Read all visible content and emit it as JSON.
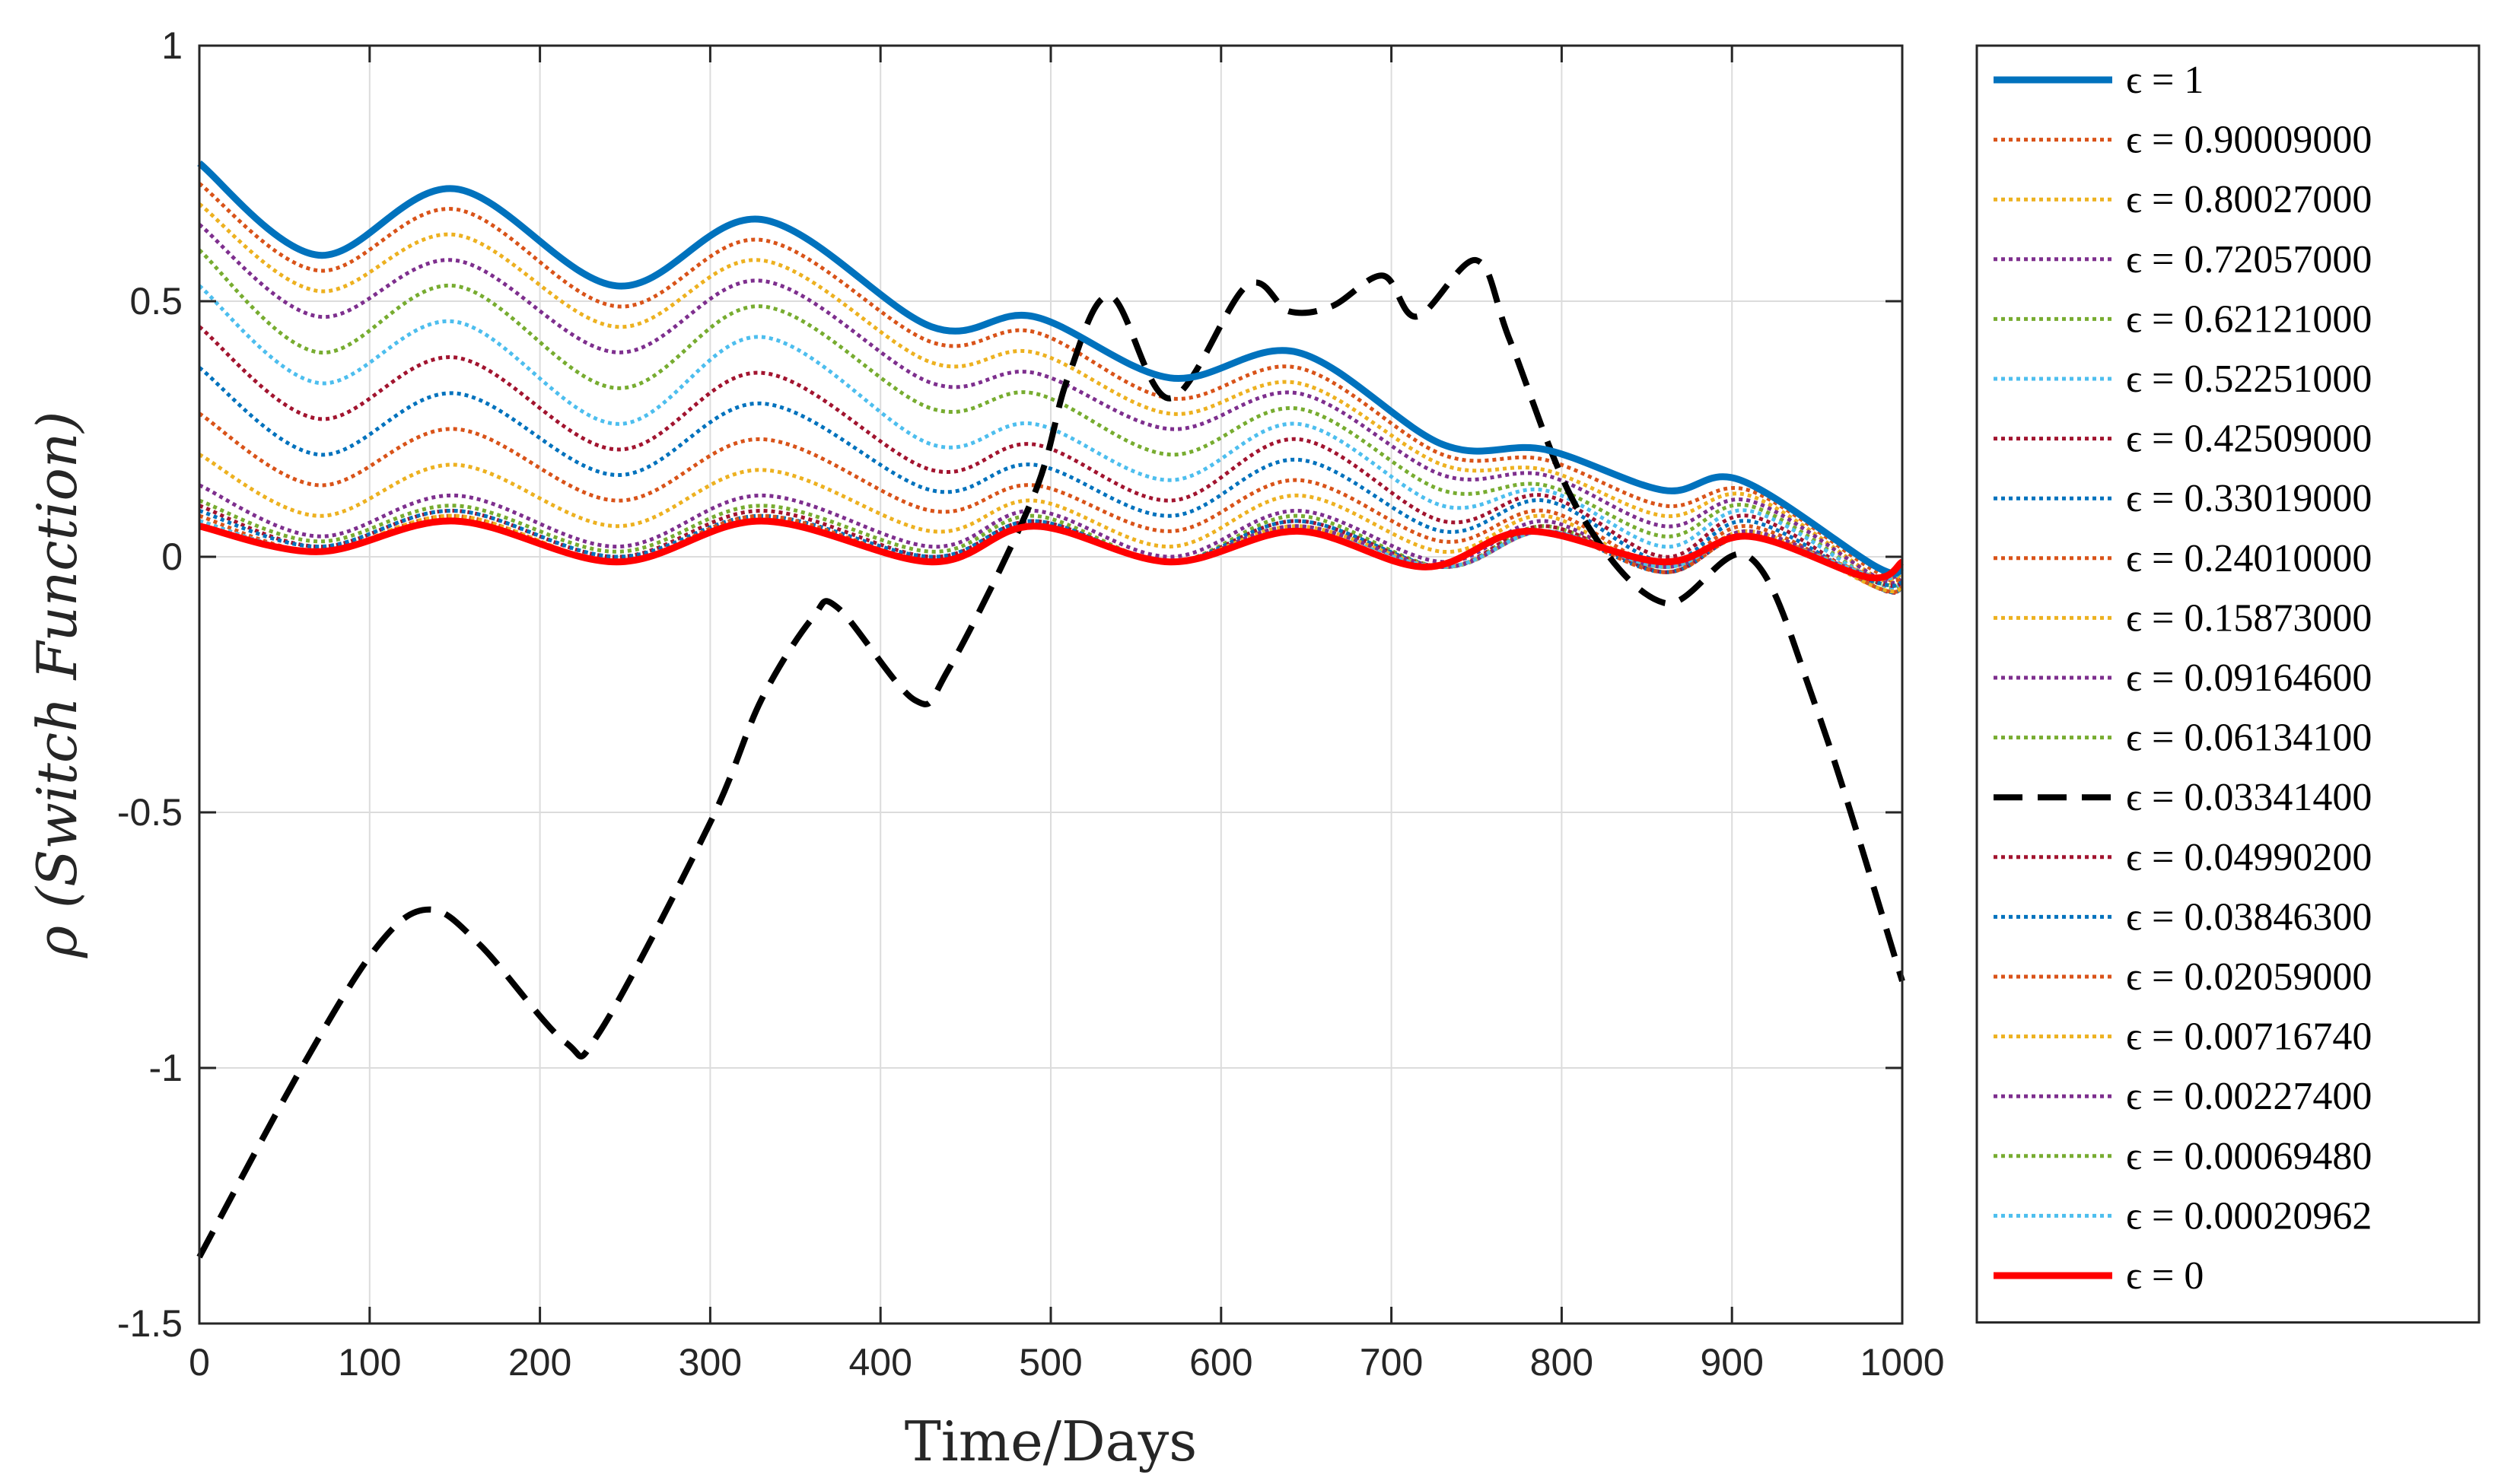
{
  "chart_data": {
    "type": "line",
    "xlabel": "Time/Days",
    "ylabel": "ρ (Switch Function)",
    "xlim": [
      0,
      1000
    ],
    "ylim": [
      -1.5,
      1
    ],
    "xticks": [
      "0",
      "100",
      "200",
      "300",
      "400",
      "500",
      "600",
      "700",
      "800",
      "900",
      "1000"
    ],
    "yticks": [
      "1",
      "0.5",
      "0",
      "-0.5",
      "-1",
      "-1.5"
    ],
    "grid": true,
    "legend_position": "outside-right",
    "series": [
      {
        "name": "ϵ = 1",
        "color": "#0072BD",
        "style": "solid",
        "x": [
          0,
          70,
          150,
          245,
          330,
          430,
          490,
          570,
          645,
          730,
          790,
          860,
          905,
          985,
          1000
        ],
        "y": [
          0.77,
          0.59,
          0.72,
          0.53,
          0.66,
          0.45,
          0.47,
          0.35,
          0.4,
          0.22,
          0.21,
          0.13,
          0.15,
          -0.02,
          -0.02
        ]
      },
      {
        "name": "ϵ = 0.90009000",
        "color": "#D95319",
        "style": "dotted",
        "x": [
          0,
          70,
          150,
          245,
          330,
          430,
          490,
          570,
          645,
          730,
          790,
          860,
          910,
          985,
          1000
        ],
        "y": [
          0.73,
          0.56,
          0.68,
          0.49,
          0.62,
          0.42,
          0.44,
          0.31,
          0.37,
          0.2,
          0.19,
          0.1,
          0.13,
          -0.03,
          -0.03
        ]
      },
      {
        "name": "ϵ = 0.80027000",
        "color": "#EDB120",
        "style": "dotted",
        "x": [
          0,
          70,
          150,
          245,
          330,
          430,
          490,
          570,
          645,
          730,
          790,
          860,
          910,
          985,
          1000
        ],
        "y": [
          0.69,
          0.52,
          0.63,
          0.45,
          0.58,
          0.38,
          0.4,
          0.28,
          0.34,
          0.18,
          0.17,
          0.08,
          0.12,
          -0.04,
          -0.04
        ]
      },
      {
        "name": "ϵ = 0.72057000",
        "color": "#7E2F8E",
        "style": "dotted",
        "x": [
          0,
          70,
          150,
          245,
          330,
          430,
          490,
          570,
          645,
          730,
          790,
          860,
          910,
          985,
          1000
        ],
        "y": [
          0.65,
          0.47,
          0.58,
          0.4,
          0.54,
          0.34,
          0.36,
          0.25,
          0.32,
          0.16,
          0.16,
          0.06,
          0.11,
          -0.04,
          -0.04
        ]
      },
      {
        "name": "ϵ = 0.62121000",
        "color": "#77AC30",
        "style": "dotted",
        "x": [
          0,
          70,
          150,
          245,
          330,
          430,
          490,
          570,
          645,
          730,
          790,
          860,
          910,
          985,
          1000
        ],
        "y": [
          0.6,
          0.4,
          0.53,
          0.33,
          0.49,
          0.29,
          0.32,
          0.2,
          0.29,
          0.13,
          0.14,
          0.04,
          0.1,
          -0.05,
          -0.05
        ]
      },
      {
        "name": "ϵ = 0.52251000",
        "color": "#4DBEEE",
        "style": "dotted",
        "x": [
          0,
          70,
          150,
          245,
          330,
          430,
          490,
          570,
          645,
          730,
          790,
          860,
          910,
          985,
          1000
        ],
        "y": [
          0.53,
          0.34,
          0.46,
          0.26,
          0.43,
          0.22,
          0.26,
          0.15,
          0.26,
          0.1,
          0.13,
          0.02,
          0.09,
          -0.05,
          -0.05
        ]
      },
      {
        "name": "ϵ = 0.42509000",
        "color": "#A2142F",
        "style": "dotted",
        "x": [
          0,
          70,
          150,
          245,
          330,
          430,
          490,
          570,
          645,
          730,
          790,
          860,
          910,
          985,
          1000
        ],
        "y": [
          0.45,
          0.27,
          0.39,
          0.21,
          0.36,
          0.17,
          0.22,
          0.11,
          0.23,
          0.07,
          0.12,
          0.0,
          0.08,
          -0.06,
          -0.06
        ]
      },
      {
        "name": "ϵ = 0.33019000",
        "color": "#0072BD",
        "style": "dotted",
        "x": [
          0,
          70,
          150,
          245,
          330,
          430,
          490,
          570,
          645,
          730,
          790,
          860,
          910,
          985,
          1000
        ],
        "y": [
          0.37,
          0.2,
          0.32,
          0.16,
          0.3,
          0.13,
          0.18,
          0.08,
          0.19,
          0.05,
          0.11,
          -0.01,
          0.07,
          -0.06,
          -0.06
        ]
      },
      {
        "name": "ϵ = 0.24010000",
        "color": "#D95319",
        "style": "dotted",
        "x": [
          0,
          70,
          150,
          245,
          330,
          430,
          490,
          570,
          645,
          730,
          790,
          860,
          910,
          985,
          1000
        ],
        "y": [
          0.28,
          0.14,
          0.25,
          0.11,
          0.23,
          0.09,
          0.14,
          0.05,
          0.15,
          0.03,
          0.09,
          -0.02,
          0.06,
          -0.06,
          -0.06
        ]
      },
      {
        "name": "ϵ = 0.15873000",
        "color": "#EDB120",
        "style": "dotted",
        "x": [
          0,
          70,
          150,
          245,
          330,
          430,
          490,
          570,
          645,
          730,
          790,
          860,
          910,
          985,
          1000
        ],
        "y": [
          0.2,
          0.08,
          0.18,
          0.06,
          0.17,
          0.05,
          0.11,
          0.02,
          0.12,
          0.01,
          0.08,
          -0.03,
          0.05,
          -0.06,
          -0.06
        ]
      },
      {
        "name": "ϵ = 0.09164600",
        "color": "#7E2F8E",
        "style": "dotted",
        "x": [
          0,
          70,
          150,
          245,
          330,
          430,
          490,
          570,
          645,
          730,
          790,
          860,
          910,
          985,
          1000
        ],
        "y": [
          0.14,
          0.04,
          0.12,
          0.02,
          0.12,
          0.02,
          0.09,
          0.0,
          0.09,
          -0.01,
          0.07,
          -0.03,
          0.05,
          -0.05,
          -0.05
        ]
      },
      {
        "name": "ϵ = 0.06134100",
        "color": "#77AC30",
        "style": "dotted",
        "x": [
          0,
          70,
          150,
          245,
          330,
          430,
          490,
          570,
          645,
          730,
          790,
          860,
          910,
          985,
          1000
        ],
        "y": [
          0.11,
          0.03,
          0.1,
          0.01,
          0.1,
          0.01,
          0.08,
          -0.01,
          0.08,
          -0.02,
          0.06,
          -0.03,
          0.04,
          -0.05,
          -0.05
        ]
      },
      {
        "name": "ϵ = 0.03341400",
        "color": "#000000",
        "style": "dashed",
        "x": [
          0,
          60,
          105,
          135,
          165,
          215,
          235,
          300,
          330,
          360,
          375,
          420,
          440,
          490,
          510,
          535,
          570,
          615,
          640,
          665,
          695,
          715,
          750,
          770,
          810,
          860,
          910,
          950,
          1000
        ],
        "y": [
          -1.37,
          -1.0,
          -0.76,
          -0.69,
          -0.76,
          -0.95,
          -0.93,
          -0.52,
          -0.28,
          -0.12,
          -0.1,
          -0.28,
          -0.22,
          0.12,
          0.35,
          0.51,
          0.31,
          0.53,
          0.48,
          0.49,
          0.55,
          0.47,
          0.58,
          0.42,
          0.09,
          -0.09,
          0.0,
          -0.3,
          -0.83
        ]
      },
      {
        "name": "ϵ = 0.04990200",
        "color": "#A2142F",
        "style": "dotted",
        "x": [
          0,
          70,
          150,
          245,
          330,
          430,
          490,
          570,
          645,
          730,
          790,
          860,
          910,
          985,
          1000
        ],
        "y": [
          0.1,
          0.02,
          0.09,
          0.0,
          0.09,
          0.0,
          0.07,
          -0.01,
          0.07,
          -0.02,
          0.06,
          -0.03,
          0.04,
          -0.05,
          -0.05
        ]
      },
      {
        "name": "ϵ = 0.03846300",
        "color": "#0072BD",
        "style": "dotted",
        "x": [
          0,
          70,
          150,
          245,
          330,
          430,
          490,
          570,
          645,
          730,
          790,
          860,
          910,
          985,
          1000
        ],
        "y": [
          0.09,
          0.02,
          0.09,
          0.0,
          0.08,
          0.0,
          0.07,
          -0.01,
          0.07,
          -0.02,
          0.05,
          -0.03,
          0.04,
          -0.05,
          -0.05
        ]
      },
      {
        "name": "ϵ = 0.02059000",
        "color": "#D95319",
        "style": "dotted",
        "x": [
          0,
          70,
          150,
          245,
          330,
          430,
          490,
          570,
          645,
          730,
          790,
          860,
          910,
          985,
          1000
        ],
        "y": [
          0.08,
          0.01,
          0.08,
          -0.01,
          0.08,
          -0.01,
          0.06,
          -0.01,
          0.06,
          -0.02,
          0.05,
          -0.03,
          0.04,
          -0.04,
          -0.04
        ]
      },
      {
        "name": "ϵ = 0.00716740",
        "color": "#EDB120",
        "style": "dotted",
        "x": [
          0,
          70,
          150,
          245,
          330,
          430,
          490,
          570,
          645,
          730,
          790,
          860,
          910,
          985,
          1000
        ],
        "y": [
          0.07,
          0.01,
          0.08,
          -0.01,
          0.07,
          -0.01,
          0.06,
          -0.01,
          0.06,
          -0.02,
          0.05,
          -0.02,
          0.04,
          -0.04,
          -0.03
        ]
      },
      {
        "name": "ϵ = 0.00227400",
        "color": "#7E2F8E",
        "style": "dotted",
        "x": [
          0,
          70,
          150,
          245,
          330,
          430,
          490,
          570,
          645,
          730,
          790,
          860,
          910,
          985,
          1000
        ],
        "y": [
          0.07,
          0.01,
          0.07,
          -0.01,
          0.07,
          -0.01,
          0.06,
          -0.01,
          0.06,
          -0.02,
          0.05,
          -0.02,
          0.04,
          -0.04,
          -0.02
        ]
      },
      {
        "name": "ϵ = 0.00069480",
        "color": "#77AC30",
        "style": "dotted",
        "x": [
          0,
          70,
          150,
          245,
          330,
          430,
          490,
          570,
          645,
          730,
          790,
          860,
          910,
          985,
          1000
        ],
        "y": [
          0.07,
          0.01,
          0.07,
          -0.01,
          0.07,
          -0.01,
          0.06,
          -0.01,
          0.05,
          -0.02,
          0.05,
          -0.02,
          0.04,
          -0.04,
          -0.02
        ]
      },
      {
        "name": "ϵ = 0.00020962",
        "color": "#4DBEEE",
        "style": "dotted",
        "x": [
          0,
          70,
          150,
          245,
          330,
          430,
          490,
          570,
          645,
          730,
          790,
          860,
          910,
          985,
          1000
        ],
        "y": [
          0.07,
          0.01,
          0.07,
          -0.01,
          0.07,
          -0.01,
          0.06,
          -0.01,
          0.05,
          -0.02,
          0.05,
          -0.02,
          0.04,
          -0.04,
          -0.02
        ]
      },
      {
        "name": "ϵ = 0",
        "color": "#FF0000",
        "style": "solid",
        "x": [
          0,
          70,
          150,
          245,
          330,
          430,
          490,
          570,
          645,
          720,
          780,
          860,
          910,
          980,
          1000
        ],
        "y": [
          0.06,
          0.01,
          0.07,
          -0.01,
          0.07,
          -0.01,
          0.06,
          -0.01,
          0.05,
          -0.02,
          0.05,
          -0.01,
          0.04,
          -0.04,
          -0.01
        ]
      }
    ]
  }
}
